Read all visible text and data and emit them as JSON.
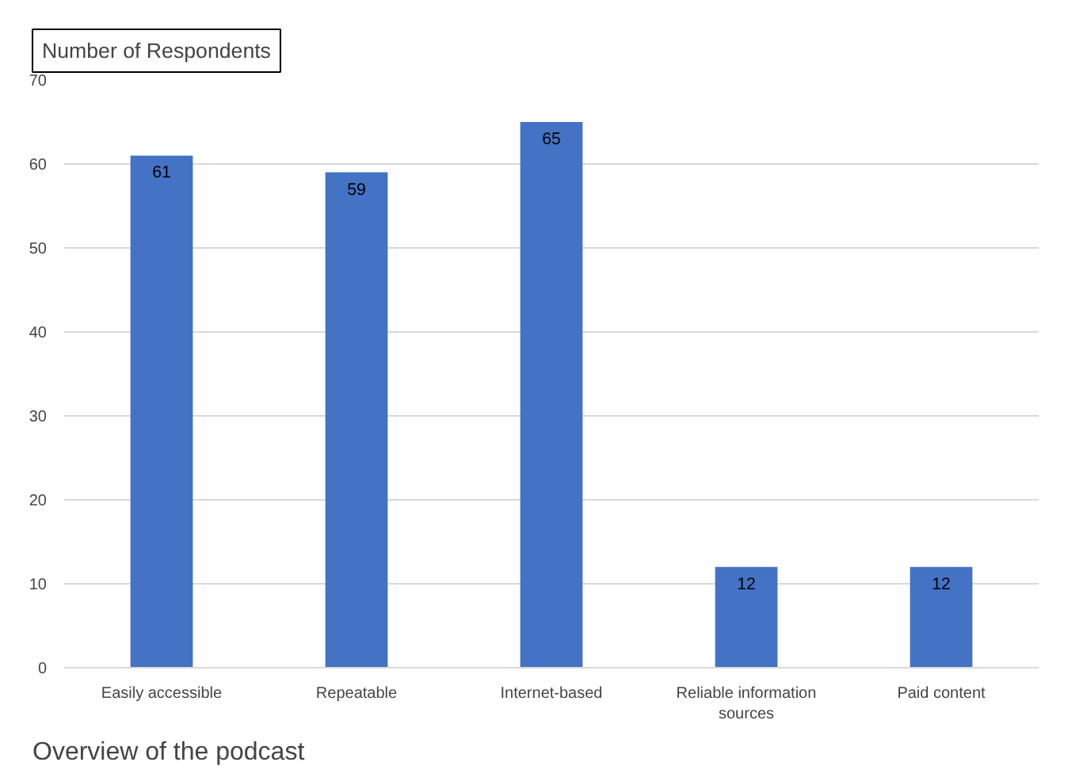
{
  "chart_data": {
    "type": "bar",
    "ylabel": "Number of Respondents",
    "xlabel": "Overview of the podcast",
    "categories": [
      "Easily accessible",
      "Repeatable",
      "Internet-based",
      "Reliable information sources",
      "Paid content"
    ],
    "values": [
      61,
      59,
      65,
      12,
      12
    ],
    "color": "#4472c4",
    "ylim": [
      0,
      70
    ],
    "yticks": [
      0,
      10,
      20,
      30,
      40,
      50,
      60,
      70
    ],
    "grid": "y",
    "data_labels": true
  }
}
